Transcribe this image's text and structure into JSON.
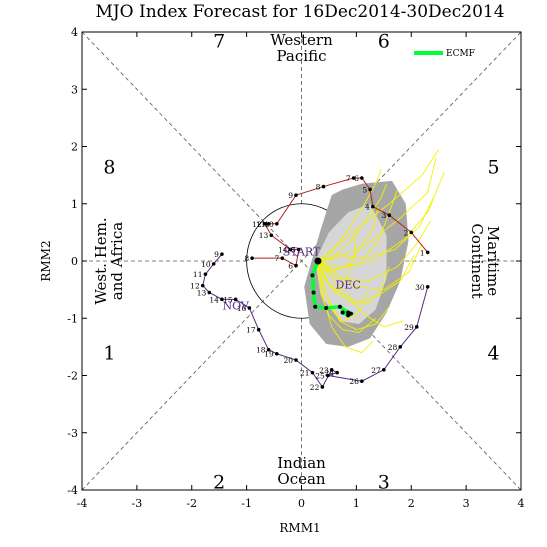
{
  "chart_data": {
    "type": "line",
    "title": "MJO Index Forecast for 16Dec2014-30Dec2014",
    "xlabel": "RMM1",
    "ylabel": "RMM2",
    "xlim": [
      -4,
      4
    ],
    "ylim": [
      -4,
      4
    ],
    "xticks": [
      "-4",
      "-3",
      "-2",
      "-1",
      "0",
      "1",
      "2",
      "3",
      "4"
    ],
    "yticks": [
      "-4",
      "-3",
      "-2",
      "-1",
      "0",
      "1",
      "2",
      "3",
      "4"
    ],
    "grid": false,
    "legend": "top-right",
    "phases": [
      {
        "label": "1",
        "x": -3.5,
        "y": -1.6
      },
      {
        "label": "2",
        "x": -1.5,
        "y": -3.85
      },
      {
        "label": "3",
        "x": 1.5,
        "y": -3.85
      },
      {
        "label": "4",
        "x": 3.5,
        "y": -1.6
      },
      {
        "label": "5",
        "x": 3.5,
        "y": 1.65
      },
      {
        "label": "6",
        "x": 1.5,
        "y": 3.85
      },
      {
        "label": "7",
        "x": -1.5,
        "y": 3.85
      },
      {
        "label": "8",
        "x": -3.5,
        "y": 1.65
      }
    ],
    "regions": {
      "top": [
        "Western",
        "Pacific"
      ],
      "bottom": [
        "Indian",
        "Ocean"
      ],
      "left": [
        "West. Hem.",
        "and Africa"
      ],
      "right": [
        "Maritime",
        "Continent"
      ]
    },
    "month_labels": [
      {
        "text": "NOV",
        "x": -1.2,
        "y": -0.85
      },
      {
        "text": "DEC",
        "x": 0.85,
        "y": -0.48
      },
      {
        "text": "START",
        "x": 0.0,
        "y": 0.1
      }
    ],
    "observed_nov": {
      "color": "#5a2a86",
      "points": [
        {
          "day": "9",
          "x": -1.45,
          "y": 0.12
        },
        {
          "day": "10",
          "x": -1.6,
          "y": -0.05
        },
        {
          "day": "11",
          "x": -1.75,
          "y": -0.23
        },
        {
          "day": "12",
          "x": -1.8,
          "y": -0.43
        },
        {
          "day": "13",
          "x": -1.68,
          "y": -0.55
        },
        {
          "day": "14",
          "x": -1.45,
          "y": -0.67
        },
        {
          "day": "15",
          "x": -1.2,
          "y": -0.67
        },
        {
          "day": "16",
          "x": -0.95,
          "y": -0.82
        },
        {
          "day": "17",
          "x": -0.78,
          "y": -1.2
        },
        {
          "day": "18",
          "x": -0.6,
          "y": -1.55
        },
        {
          "day": "19",
          "x": -0.45,
          "y": -1.62
        },
        {
          "day": "20",
          "x": -0.1,
          "y": -1.73
        },
        {
          "day": "21",
          "x": 0.2,
          "y": -1.95
        },
        {
          "day": "22",
          "x": 0.38,
          "y": -2.2
        },
        {
          "day": "23",
          "x": 0.55,
          "y": -1.9
        },
        {
          "day": "24",
          "x": 0.65,
          "y": -1.95
        },
        {
          "day": "25",
          "x": 0.48,
          "y": -2.0
        },
        {
          "day": "26",
          "x": 1.1,
          "y": -2.1
        },
        {
          "day": "27",
          "x": 1.5,
          "y": -1.9
        },
        {
          "day": "28",
          "x": 1.8,
          "y": -1.5
        },
        {
          "day": "29",
          "x": 2.1,
          "y": -1.15
        },
        {
          "day": "30",
          "x": 2.3,
          "y": -0.45
        }
      ]
    },
    "observed_dec": {
      "color": "#b22222",
      "points": [
        {
          "day": "1",
          "x": 2.3,
          "y": 0.15
        },
        {
          "day": "2",
          "x": 2.0,
          "y": 0.5
        },
        {
          "day": "3",
          "x": 1.6,
          "y": 0.8
        },
        {
          "day": "4",
          "x": 1.3,
          "y": 0.95
        },
        {
          "day": "5",
          "x": 1.25,
          "y": 1.25
        },
        {
          "day": "6",
          "x": 1.1,
          "y": 1.45
        },
        {
          "day": "7",
          "x": 0.95,
          "y": 1.45
        },
        {
          "day": "8",
          "x": 0.4,
          "y": 1.3
        },
        {
          "day": "9",
          "x": -0.1,
          "y": 1.15
        },
        {
          "day": "10",
          "x": -0.45,
          "y": 0.65
        },
        {
          "day": "11",
          "x": -0.6,
          "y": 0.65
        },
        {
          "day": "12",
          "x": -0.67,
          "y": 0.65
        },
        {
          "day": "13",
          "x": -0.55,
          "y": 0.45
        },
        {
          "day": "14",
          "x": -0.2,
          "y": 0.2
        },
        {
          "day": "15",
          "x": -0.05,
          "y": 0.2
        },
        {
          "day": "6",
          "x": -0.1,
          "y": -0.08
        },
        {
          "day": "7",
          "x": -0.35,
          "y": 0.05
        },
        {
          "day": "8",
          "x": -0.9,
          "y": 0.05
        }
      ]
    },
    "series": [
      {
        "name": "ECMF",
        "color": "#00ff33",
        "x": [
          0.3,
          0.2,
          0.22,
          0.25,
          0.45,
          0.7,
          0.85,
          0.9,
          0.85,
          0.75
        ],
        "y": [
          0.0,
          -0.25,
          -0.55,
          -0.8,
          -0.82,
          -0.8,
          -0.9,
          -0.92,
          -0.95,
          -0.9
        ]
      }
    ],
    "ensemble_members": [
      {
        "x": [
          0.3,
          0.55,
          1.0,
          1.6,
          2.2,
          2.5
        ],
        "y": [
          0.0,
          0.2,
          0.55,
          1.0,
          1.5,
          1.95
        ]
      },
      {
        "x": [
          0.3,
          0.65,
          1.2,
          1.8,
          2.3,
          2.45
        ],
        "y": [
          0.0,
          0.05,
          0.3,
          0.75,
          1.2,
          1.8
        ]
      },
      {
        "x": [
          0.3,
          0.7,
          1.3,
          1.9,
          2.3,
          2.6
        ],
        "y": [
          0.0,
          -0.1,
          0.0,
          0.4,
          0.85,
          1.55
        ]
      },
      {
        "x": [
          0.3,
          0.65,
          1.2,
          1.75,
          2.1,
          2.35
        ],
        "y": [
          0.0,
          -0.3,
          -0.35,
          -0.1,
          0.3,
          0.7
        ]
      },
      {
        "x": [
          0.3,
          0.55,
          0.95,
          1.4,
          1.8,
          2.05
        ],
        "y": [
          0.0,
          -0.5,
          -0.75,
          -0.6,
          -0.35,
          0.1
        ]
      },
      {
        "x": [
          0.3,
          0.45,
          0.7,
          1.0,
          1.35,
          1.6
        ],
        "y": [
          0.0,
          -0.6,
          -1.05,
          -1.2,
          -1.1,
          -0.8
        ]
      },
      {
        "x": [
          0.3,
          0.4,
          0.55,
          0.8,
          1.1,
          1.3
        ],
        "y": [
          0.0,
          -0.65,
          -1.15,
          -1.5,
          -1.6,
          -1.4
        ]
      },
      {
        "x": [
          0.3,
          0.5,
          0.85,
          1.2,
          1.45,
          1.6
        ],
        "y": [
          0.0,
          -0.4,
          -0.65,
          -0.75,
          -0.5,
          -0.1
        ]
      },
      {
        "x": [
          0.3,
          0.6,
          1.05,
          1.4,
          1.6,
          1.75
        ],
        "y": [
          0.0,
          -0.15,
          -0.05,
          0.35,
          0.85,
          1.25
        ]
      },
      {
        "x": [
          0.3,
          0.55,
          0.9,
          1.2,
          1.45,
          1.55
        ],
        "y": [
          0.0,
          0.05,
          0.35,
          0.75,
          1.1,
          1.35
        ]
      },
      {
        "x": [
          0.3,
          0.5,
          0.8,
          1.05,
          1.3,
          1.4
        ],
        "y": [
          0.0,
          -0.2,
          -0.1,
          0.2,
          0.55,
          0.95
        ]
      },
      {
        "x": [
          0.3,
          0.45,
          0.65,
          0.8,
          0.95,
          1.0
        ],
        "y": [
          0.0,
          -0.35,
          -0.55,
          -0.35,
          0.05,
          0.5
        ]
      },
      {
        "x": [
          0.3,
          0.4,
          0.55,
          0.75,
          1.0,
          1.2
        ],
        "y": [
          0.0,
          -0.45,
          -0.85,
          -1.05,
          -0.95,
          -0.55
        ]
      },
      {
        "x": [
          0.3,
          0.6,
          1.0,
          1.5,
          1.95,
          2.2
        ],
        "y": [
          0.0,
          -0.2,
          -0.45,
          -0.5,
          -0.2,
          0.3
        ]
      },
      {
        "x": [
          0.3,
          0.65,
          1.15,
          1.7,
          2.15,
          2.4
        ],
        "y": [
          0.0,
          0.1,
          0.05,
          0.2,
          0.6,
          1.1
        ]
      },
      {
        "x": [
          0.3,
          0.5,
          0.75,
          1.1,
          1.5,
          1.85
        ],
        "y": [
          0.0,
          -0.25,
          -0.5,
          -0.9,
          -1.15,
          -1.05
        ]
      },
      {
        "x": [
          0.3,
          0.35,
          0.5,
          0.75,
          1.05,
          1.35
        ],
        "y": [
          0.0,
          -0.55,
          -0.95,
          -1.2,
          -1.25,
          -1.0
        ]
      },
      {
        "x": [
          0.3,
          0.55,
          0.85,
          1.15,
          1.35,
          1.45
        ],
        "y": [
          0.0,
          0.15,
          0.55,
          1.0,
          1.35,
          1.6
        ]
      }
    ],
    "ensemble_spread": {
      "outer": {
        "x": [
          0.55,
          0.75,
          1.1,
          1.65,
          1.9,
          1.95,
          1.8,
          1.55,
          1.25,
          0.85,
          0.45,
          0.15,
          0.05,
          0.2,
          0.35
        ],
        "y": [
          1.15,
          1.25,
          1.35,
          1.4,
          1.0,
          0.35,
          -0.35,
          -0.9,
          -1.35,
          -1.5,
          -1.45,
          -1.1,
          -0.45,
          0.05,
          0.55
        ]
      },
      "inner": {
        "x": [
          0.85,
          1.25,
          1.55,
          1.55,
          1.35,
          1.05,
          0.7,
          0.35,
          0.25,
          0.5
        ],
        "y": [
          0.85,
          1.0,
          0.45,
          -0.3,
          -0.85,
          -1.1,
          -1.05,
          -0.6,
          0.0,
          0.5
        ]
      }
    }
  }
}
